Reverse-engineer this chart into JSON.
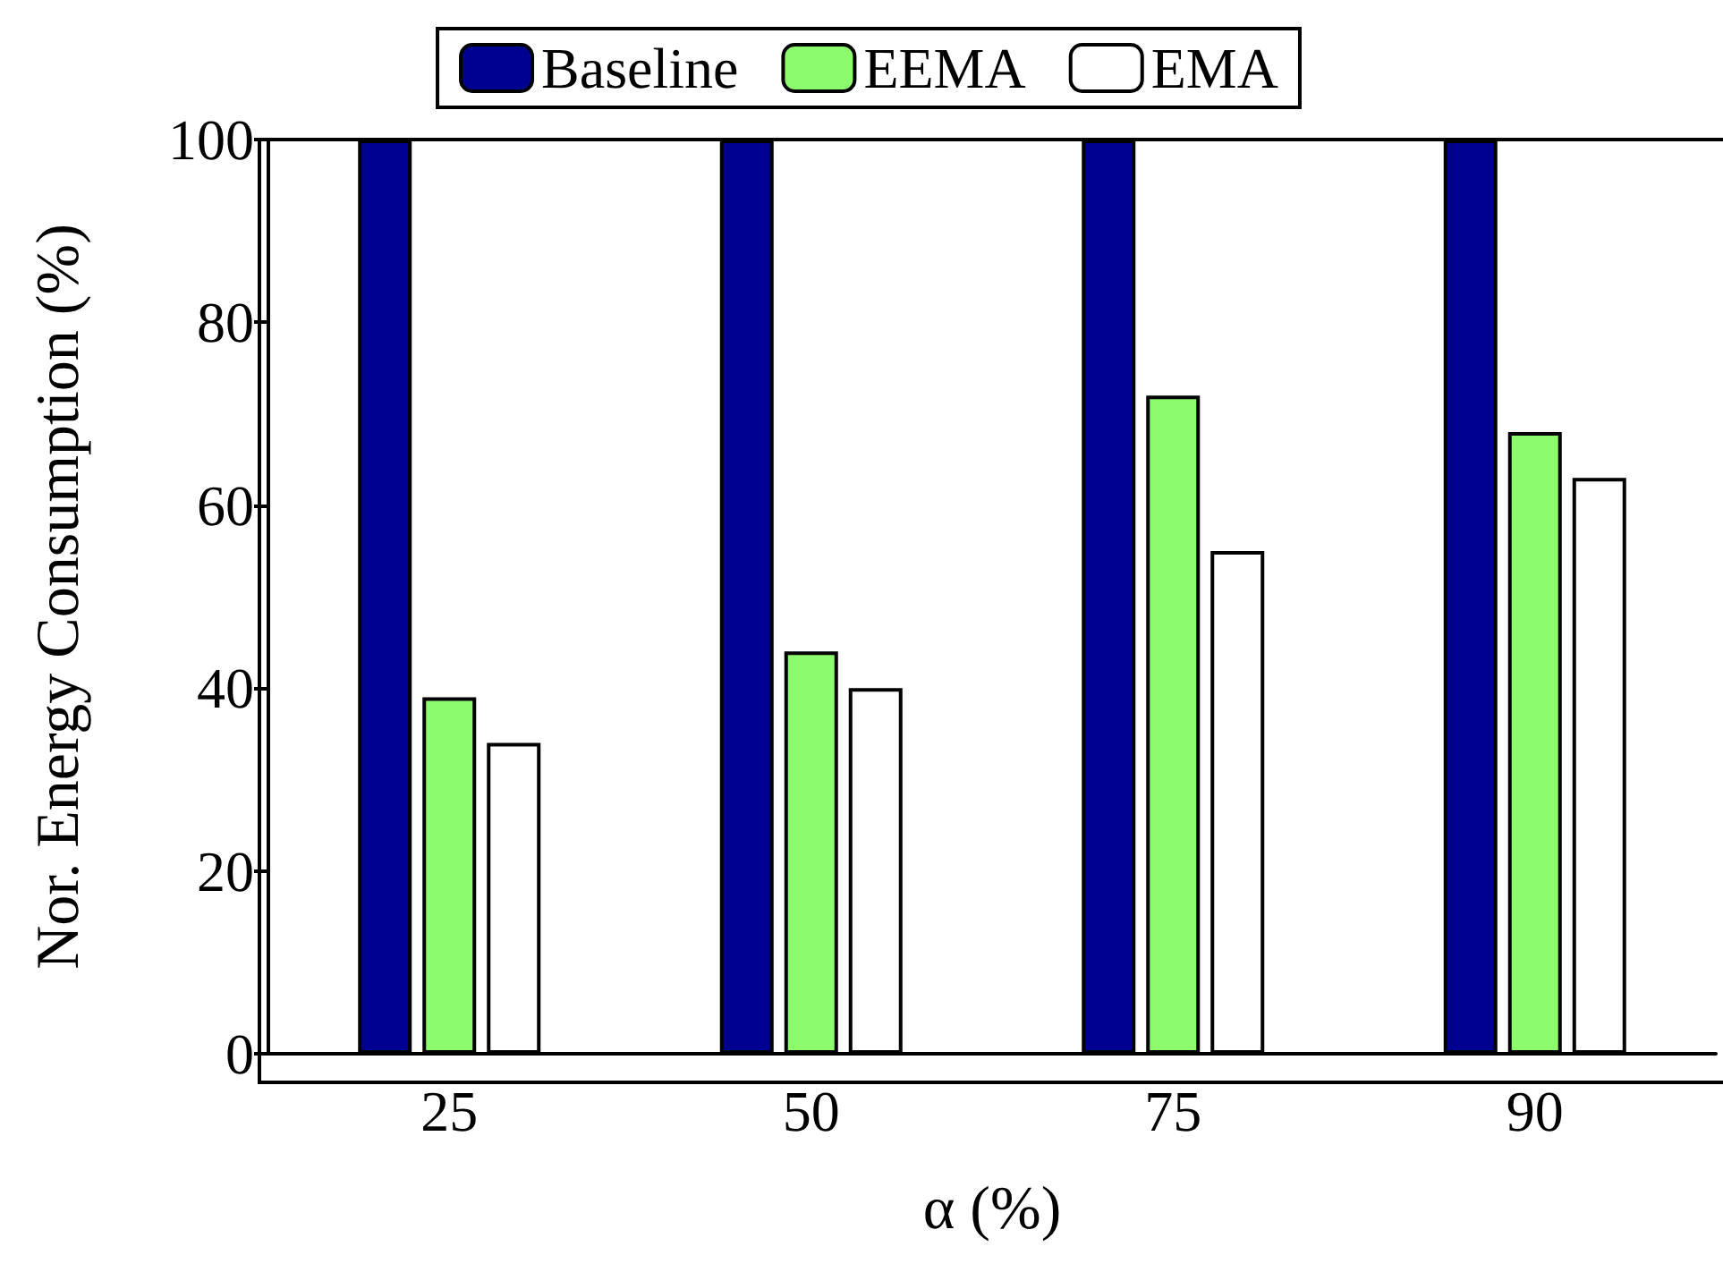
{
  "chart_data": {
    "type": "bar",
    "xlabel": "α (%)",
    "ylabel": "Nor. Energy Consumption (%)",
    "categories": [
      "25",
      "50",
      "75",
      "90"
    ],
    "series": [
      {
        "name": "Baseline",
        "color": "#000090",
        "values": [
          100,
          100,
          100,
          100
        ]
      },
      {
        "name": "EEMA",
        "color": "#8cfc6c",
        "values": [
          39,
          44,
          72,
          68
        ]
      },
      {
        "name": "EMA",
        "color": "#ffffff",
        "values": [
          34,
          40,
          55,
          63
        ]
      }
    ],
    "ylim": [
      0,
      100
    ],
    "yticks": [
      0,
      20,
      40,
      60,
      80,
      100
    ],
    "grid": false,
    "legend": "top"
  }
}
